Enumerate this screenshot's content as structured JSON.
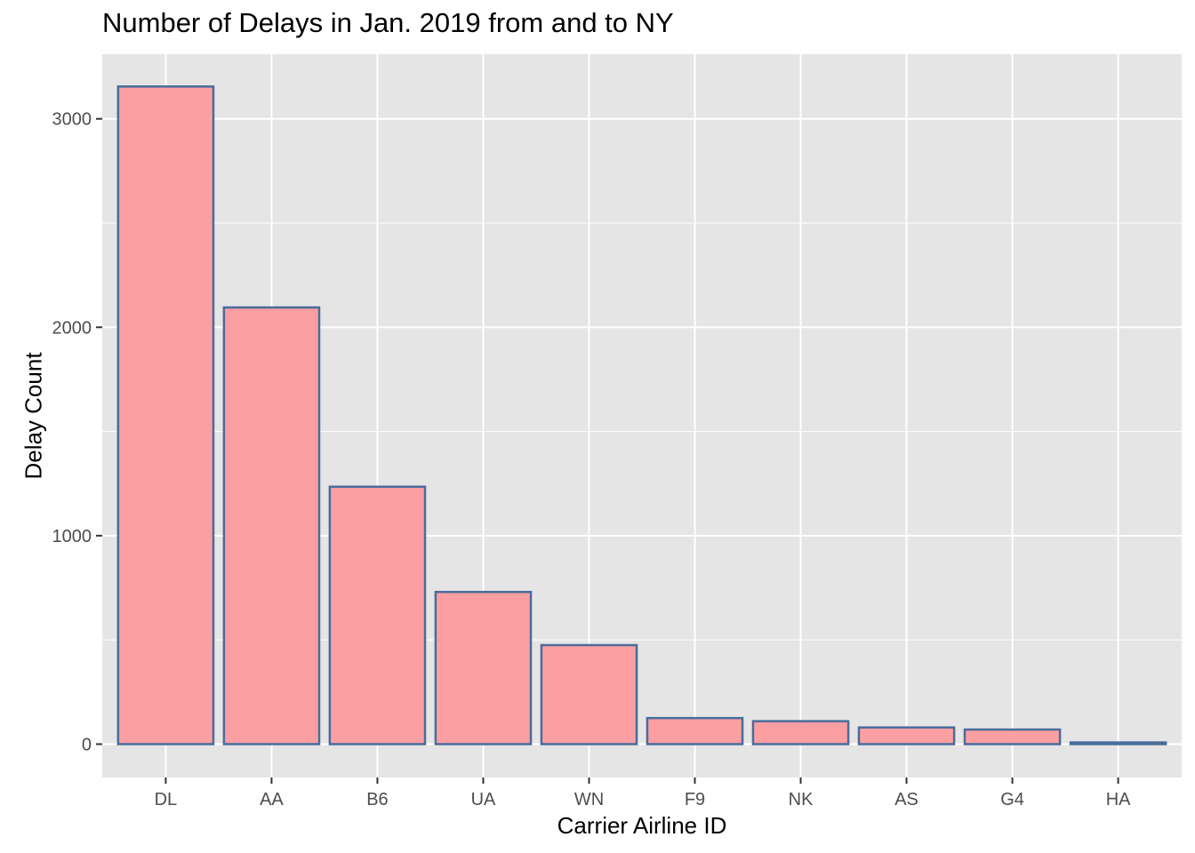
{
  "chart_data": {
    "type": "bar",
    "title": "Number of Delays in Jan. 2019 from and to NY",
    "xlabel": "Carrier Airline ID",
    "ylabel": "Delay Count",
    "categories": [
      "DL",
      "AA",
      "B6",
      "UA",
      "WN",
      "F9",
      "NK",
      "AS",
      "G4",
      "HA"
    ],
    "values": [
      3155,
      2095,
      1235,
      730,
      475,
      125,
      110,
      80,
      70,
      8
    ],
    "ylim": [
      -160,
      3310
    ],
    "yticks": [
      0,
      1000,
      2000,
      3000
    ],
    "grid": true,
    "colors": {
      "bar_fill": "#fc9fa3",
      "bar_stroke": "#4a6c9b",
      "panel_bg": "#e5e5e5",
      "grid": "#ffffff"
    }
  }
}
